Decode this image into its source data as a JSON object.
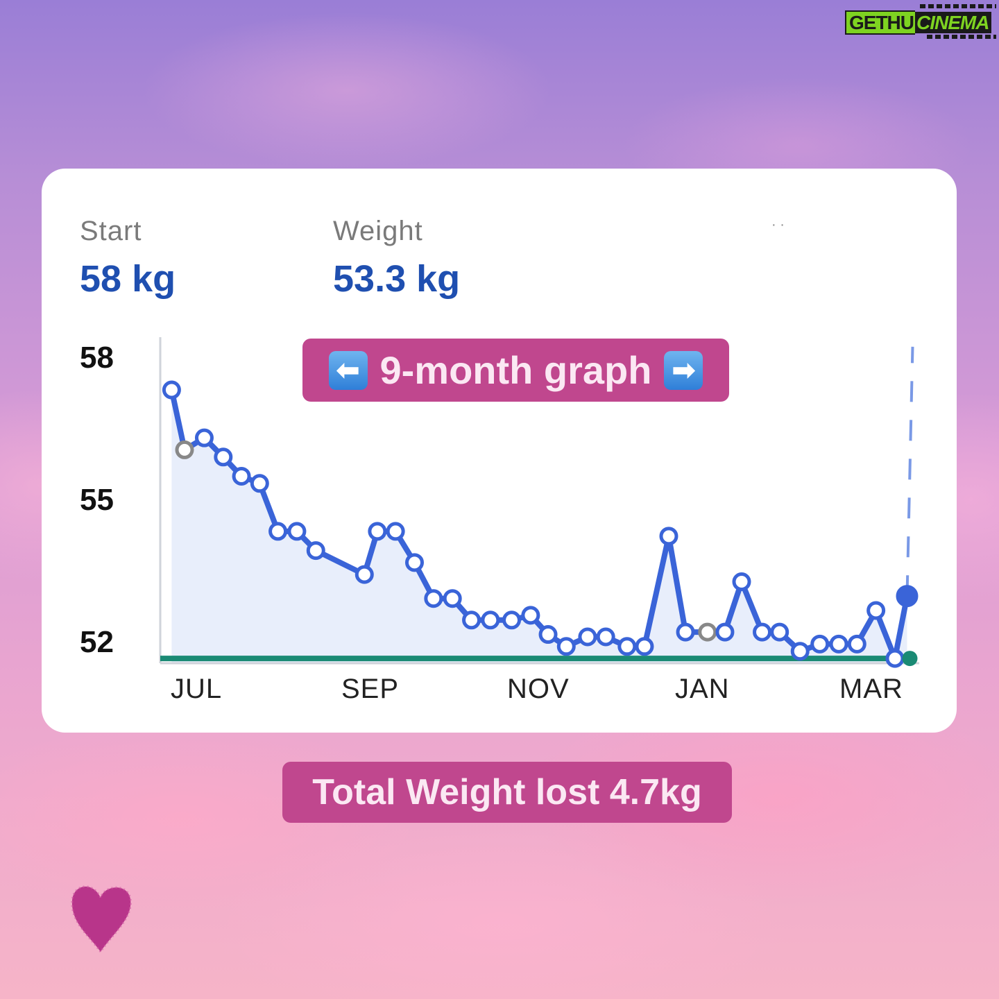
{
  "watermark": {
    "part1": "GETHU",
    "part2": "CINEMA"
  },
  "stats": {
    "start_label": "Start",
    "start_value": "58 kg",
    "weight_label": "Weight",
    "weight_value": "53.3 kg",
    "faint_mark": "· ·"
  },
  "badge_graph": {
    "left_arrow": "⬅",
    "text": "9-month graph",
    "right_arrow": "➡"
  },
  "badge_total": {
    "text": "Total Weight lost 4.7kg"
  },
  "colors": {
    "line": "#3a64d8",
    "fill": "#e8eefb",
    "goal": "#1a8a74",
    "badge": "#c0478e",
    "value_text": "#1f4fb0",
    "grey_marker": "#888888",
    "heart": "#b8358a"
  },
  "icons": {
    "heart": "heart-icon",
    "left_arrow": "left-arrow-icon",
    "right_arrow": "right-arrow-icon"
  },
  "chart_data": {
    "type": "line",
    "y_ticks": [
      "58",
      "55",
      "52"
    ],
    "x_ticks": [
      "JUL",
      "SEP",
      "NOV",
      "JAN",
      "MAR"
    ],
    "ylim": [
      51.9,
      58.7
    ],
    "xlim": [
      0,
      100
    ],
    "x_tick_positions": [
      5,
      27.5,
      50,
      71.7,
      94
    ],
    "goal_line": 52,
    "series": [
      {
        "x": [
          1.5,
          3.2,
          5.8,
          8.3,
          10.7,
          13.1,
          15.5,
          18.0,
          20.5,
          26.9,
          28.6,
          31.0,
          33.5,
          36.0,
          38.5,
          41.0,
          43.5,
          46.3,
          48.8,
          51.1,
          53.5,
          56.3,
          58.7,
          61.5,
          63.8,
          67.0,
          69.2,
          72.1,
          74.4,
          76.6,
          79.3,
          81.6,
          84.3,
          86.9,
          89.4,
          91.8,
          94.3,
          96.8,
          98.4
        ],
        "y": [
          57.6,
          56.35,
          56.6,
          56.2,
          55.8,
          55.65,
          54.65,
          54.65,
          54.25,
          53.75,
          54.65,
          54.65,
          54.0,
          53.25,
          53.25,
          52.8,
          52.8,
          52.8,
          52.9,
          52.5,
          52.25,
          52.45,
          52.45,
          52.25,
          52.25,
          54.55,
          52.55,
          52.55,
          52.55,
          53.6,
          52.55,
          52.55,
          52.15,
          52.3,
          52.3,
          52.3,
          53.0,
          52.0,
          53.3
        ],
        "grey_points": [
          1,
          27
        ]
      }
    ],
    "last_point_filled": true,
    "projection_dashed": true
  }
}
